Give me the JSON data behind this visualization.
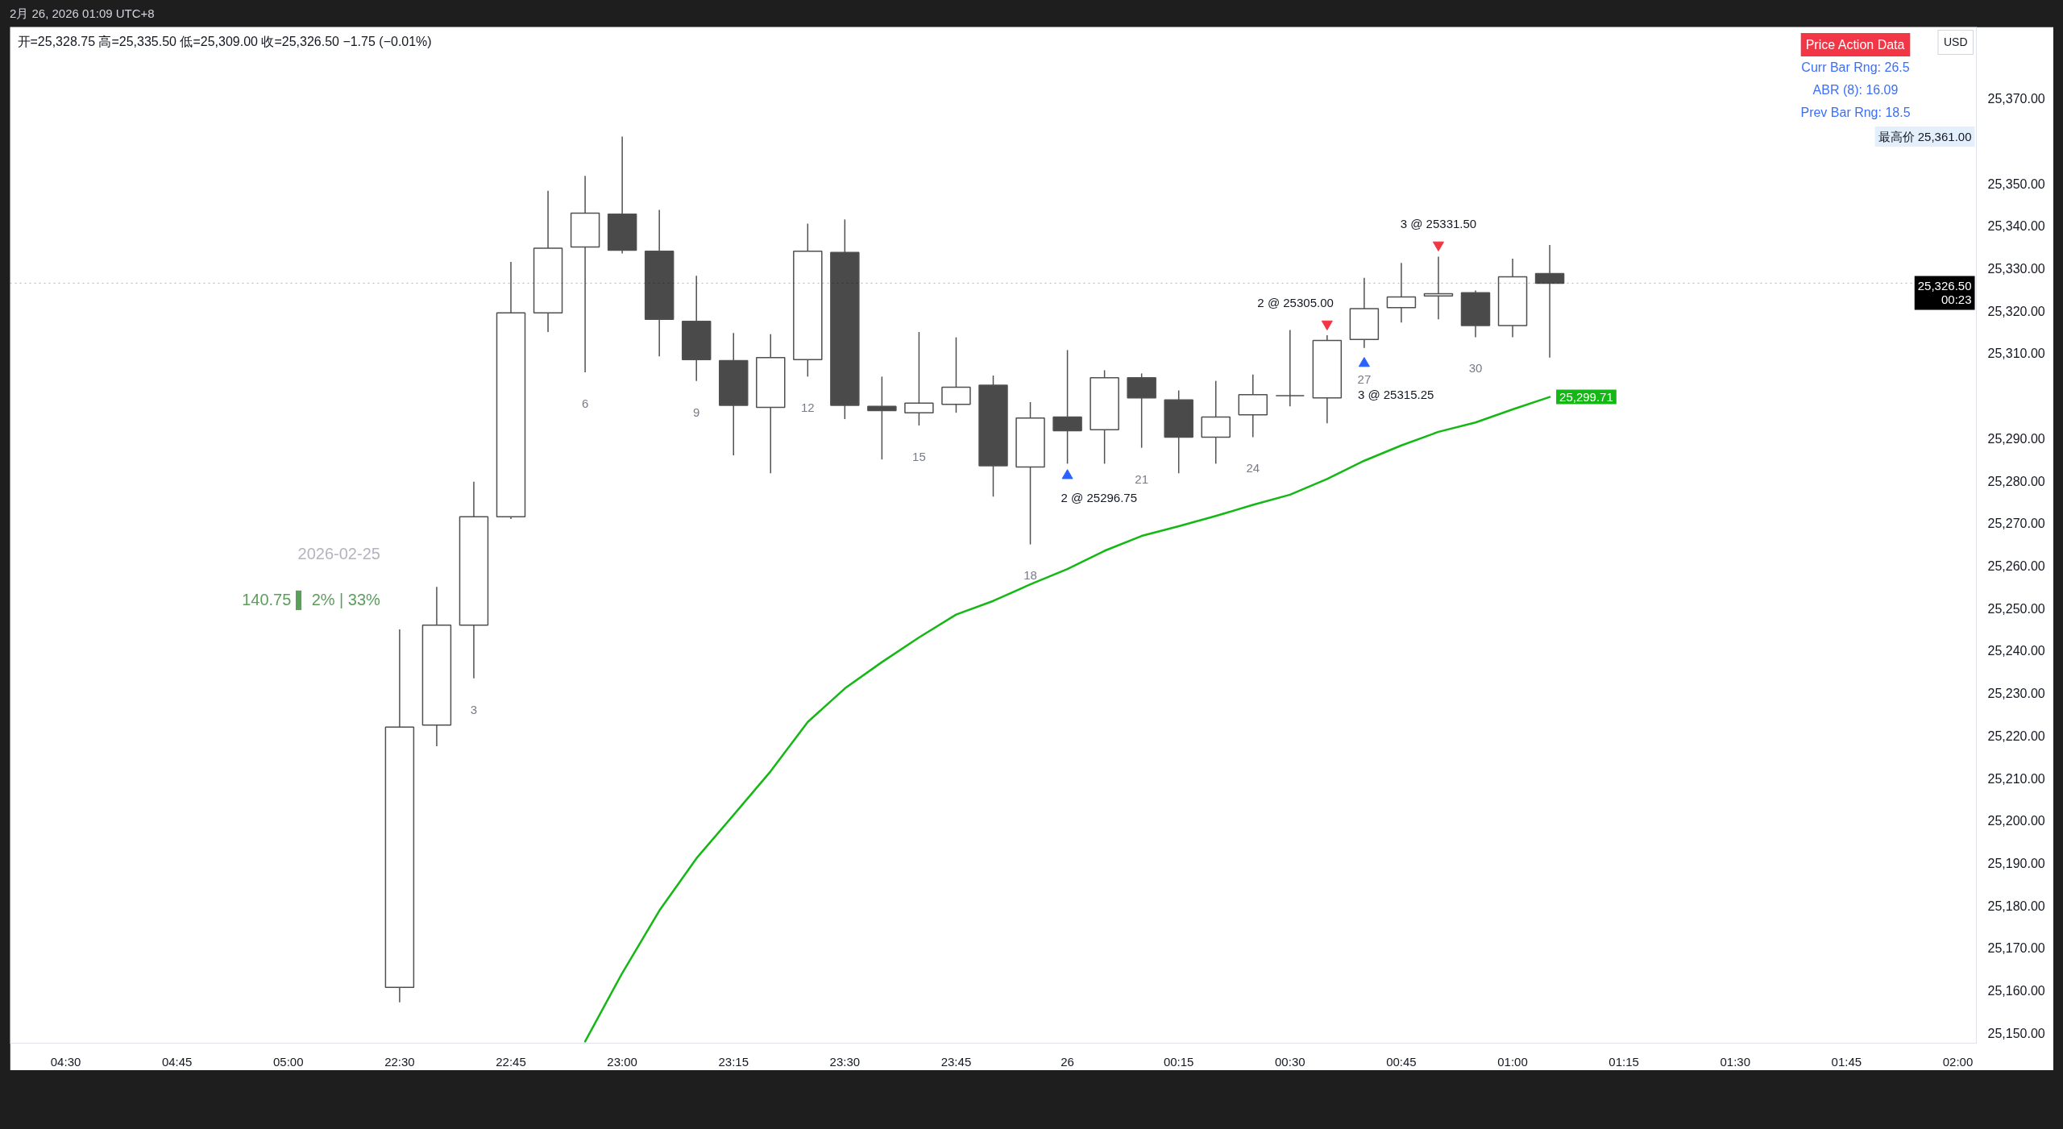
{
  "chart_data": {
    "type": "candlestick",
    "title": "开=25,328.75 高=25,335.50 低=25,309.00 收=25,326.50 −1.75 (−0.01%)",
    "subtitle": "2月 26, 2026 01:09 UTC+8",
    "ylabel": "USD",
    "categories": [
      null,
      "04:30",
      null,
      null,
      "04:45",
      null,
      null,
      "05:00",
      null,
      null,
      "22:30",
      null,
      null,
      "22:45",
      null,
      null,
      "23:00",
      null,
      null,
      "23:15",
      null,
      null,
      "23:30",
      null,
      null,
      "23:45",
      null,
      null,
      "26",
      null,
      null,
      "00:15",
      null,
      null,
      "00:30",
      null,
      null,
      "00:45",
      null,
      null,
      "01:00",
      null,
      null,
      "01:15",
      null,
      null,
      "01:30",
      null,
      null,
      "01:45",
      null,
      null,
      "02:00"
    ],
    "ohlc": [
      null,
      null,
      null,
      null,
      null,
      null,
      null,
      null,
      null,
      null,
      [
        25160.75,
        25245,
        25157.25,
        25222
      ],
      [
        25222.5,
        25255,
        25217.5,
        25246
      ],
      [
        25246,
        25279.75,
        25233.5,
        25271.5
      ],
      [
        25271.5,
        25331.5,
        25271,
        25319.5
      ],
      [
        25319.5,
        25348.25,
        25315,
        25334.75
      ],
      [
        25335,
        25351.75,
        25305.5,
        25343
      ],
      [
        25342.75,
        25361,
        25333.5,
        25334.25
      ],
      [
        25334,
        25343.75,
        25309.25,
        25318
      ],
      [
        25317.5,
        25328.25,
        25303.5,
        25308.5
      ],
      [
        25308.25,
        25314.75,
        25286,
        25297.75
      ],
      [
        25297.25,
        25314.5,
        25281.75,
        25309
      ],
      [
        25308.5,
        25340.5,
        25304.5,
        25334
      ],
      [
        25333.75,
        25341.5,
        25294.5,
        25297.75
      ],
      [
        25297.5,
        25304.5,
        25285,
        25296.5
      ],
      [
        25296,
        25315,
        25293,
        25298.25
      ],
      [
        25298,
        25313.75,
        25296,
        25302
      ],
      [
        25302.5,
        25304.75,
        25276.25,
        25283.5
      ],
      [
        25283.25,
        25298.5,
        25265,
        25294.75
      ],
      [
        25295,
        25310.75,
        25284,
        25291.75
      ],
      [
        25292,
        25306,
        25284,
        25304.25
      ],
      [
        25304.25,
        25305.25,
        25287.75,
        25299.5
      ],
      [
        25299,
        25301.25,
        25281.75,
        25290.25
      ],
      [
        25290.25,
        25303.5,
        25284,
        25295
      ],
      [
        25295.5,
        25305,
        25290.25,
        25300.25
      ],
      [
        25300,
        25315.5,
        25297.5,
        25300
      ],
      [
        25299.5,
        25314.25,
        25293.5,
        25313
      ],
      [
        25313.25,
        25327.75,
        25311.25,
        25320.5
      ],
      [
        25320.75,
        25331.25,
        25317.25,
        25323.25
      ],
      [
        25323.5,
        25332.75,
        25318,
        25324
      ],
      [
        25324.25,
        25324.75,
        25313.75,
        25316.5
      ],
      [
        25316.5,
        25332.25,
        25313.75,
        25328
      ],
      [
        25328.75,
        25335.5,
        25309,
        25326.5
      ],
      null,
      null,
      null,
      null,
      null,
      null,
      null,
      null,
      null,
      null,
      null
    ],
    "colors": [
      null,
      null,
      null,
      null,
      null,
      null,
      null,
      null,
      null,
      null,
      "#ffffff",
      "#ffffff",
      "#ffffff",
      "#ffffff",
      "#ffffff",
      "#ffffff",
      "#4a4a4a",
      "#4a4a4a",
      "#4a4a4a",
      "#4a4a4a",
      "#ffffff",
      "#ffffff",
      "#4a4a4a",
      "#4a4a4a",
      "#ffffff",
      "#ffffff",
      "#4a4a4a",
      "#ffffff",
      "#4a4a4a",
      "#ffffff",
      "#4a4a4a",
      "#4a4a4a",
      "#ffffff",
      "#ffffff",
      "#4a4a4a",
      "#ffffff",
      "#ffffff",
      "#ffffff",
      "#ffffff",
      "#4a4a4a",
      "#ffffff",
      "#4a4a4a",
      null,
      null,
      null,
      null,
      null,
      null,
      null,
      null,
      null,
      null,
      null
    ],
    "color": "#505050",
    "value_labels": [
      null,
      null,
      null,
      null,
      null,
      null,
      null,
      null,
      null,
      null,
      null,
      null,
      "3",
      null,
      null,
      "6",
      null,
      null,
      "9",
      null,
      null,
      "12",
      null,
      null,
      "15",
      null,
      null,
      "18",
      null,
      null,
      "21",
      null,
      null,
      "24",
      null,
      null,
      "27",
      null,
      null,
      "30",
      null,
      null,
      null,
      null,
      null,
      null,
      null,
      null,
      null,
      null,
      null,
      null,
      null
    ],
    "series": [
      {
        "type": "line",
        "color": "#14b814",
        "values": [
          null,
          null,
          null,
          null,
          null,
          null,
          null,
          null,
          null,
          null,
          null,
          null,
          null,
          null,
          null,
          25148,
          25164.1,
          25178.8,
          25191.1,
          25201.3,
          25211.6,
          25223.2,
          25231.1,
          25237.3,
          25243.1,
          25248.5,
          25251.7,
          25255.6,
          25259.2,
          25263.5,
          25267.0,
          25269.3,
          25271.7,
          25274.3,
          25276.7,
          25280.4,
          25284.7,
          25288.3,
          25291.5,
          25293.7,
          25296.8,
          25299.71,
          null,
          null,
          null,
          null,
          null,
          null,
          null,
          null,
          null,
          null,
          null
        ],
        "value_labels": [
          null,
          null,
          null,
          null,
          null,
          null,
          null,
          null,
          null,
          null,
          null,
          null,
          null,
          null,
          null,
          null,
          null,
          null,
          null,
          null,
          null,
          null,
          null,
          null,
          null,
          null,
          null,
          null,
          null,
          null,
          null,
          null,
          null,
          null,
          null,
          null,
          null,
          null,
          null,
          null,
          null,
          "25,299.71",
          null,
          null,
          null,
          null,
          null,
          null,
          null,
          null,
          null,
          null,
          null
        ]
      },
      {
        "type": "scatter",
        "color": "#2962ff",
        "marker": "triangle",
        "values": [
          null,
          null,
          null,
          null,
          null,
          null,
          null,
          null,
          null,
          null,
          null,
          null,
          null,
          null,
          null,
          null,
          null,
          null,
          null,
          null,
          null,
          null,
          null,
          null,
          null,
          null,
          null,
          null,
          25281.2,
          null,
          null,
          null,
          null,
          null,
          null,
          null,
          25307.6,
          null,
          null,
          null,
          null,
          null,
          null,
          null,
          null,
          null,
          null,
          null,
          null,
          null,
          null,
          null,
          null
        ],
        "value_labels": [
          null,
          null,
          null,
          null,
          null,
          null,
          null,
          null,
          null,
          null,
          null,
          null,
          null,
          null,
          null,
          null,
          null,
          null,
          null,
          null,
          null,
          null,
          null,
          null,
          null,
          null,
          null,
          null,
          "2 @ 25296.75",
          null,
          null,
          null,
          null,
          null,
          null,
          null,
          "3 @ 25315.25",
          null,
          null,
          null,
          null,
          null,
          null,
          null,
          null,
          null,
          null,
          null,
          null,
          null,
          null,
          null,
          null
        ]
      },
      {
        "type": "scatter",
        "color": "#f23645",
        "marker": "triangle",
        "values": [
          null,
          null,
          null,
          null,
          null,
          null,
          null,
          null,
          null,
          null,
          null,
          null,
          null,
          null,
          null,
          null,
          null,
          null,
          null,
          null,
          null,
          null,
          null,
          null,
          null,
          null,
          null,
          null,
          null,
          null,
          null,
          null,
          null,
          null,
          null,
          25316.9,
          null,
          null,
          25335.5,
          null,
          null,
          null,
          null,
          null,
          null,
          null,
          null,
          null,
          null,
          null,
          null,
          null,
          null
        ],
        "value_labels": [
          null,
          null,
          null,
          null,
          null,
          null,
          null,
          null,
          null,
          null,
          null,
          null,
          null,
          null,
          null,
          null,
          null,
          null,
          null,
          null,
          null,
          null,
          null,
          null,
          null,
          null,
          null,
          null,
          null,
          null,
          null,
          null,
          null,
          null,
          null,
          "2 @ 25305.00",
          null,
          null,
          "3 @ 25331.50",
          null,
          null,
          null,
          null,
          null,
          null,
          null,
          null,
          null,
          null,
          null,
          null,
          null,
          null
        ]
      }
    ],
    "ylim": [
      25147.6,
      25386.8
    ],
    "yticks": [
      {
        "value": 25150,
        "label": "25,150.00"
      },
      {
        "value": 25160,
        "label": "25,160.00"
      },
      {
        "value": 25170,
        "label": "25,170.00"
      },
      {
        "value": 25180,
        "label": "25,180.00"
      },
      {
        "value": 25190,
        "label": "25,190.00"
      },
      {
        "value": 25200,
        "label": "25,200.00"
      },
      {
        "value": 25210,
        "label": "25,210.00"
      },
      {
        "value": 25220,
        "label": "25,220.00"
      },
      {
        "value": 25230,
        "label": "25,230.00"
      },
      {
        "value": 25240,
        "label": "25,240.00"
      },
      {
        "value": 25250,
        "label": "25,250.00"
      },
      {
        "value": 25260,
        "label": "25,260.00"
      },
      {
        "value": 25270,
        "label": "25,270.00"
      },
      {
        "value": 25280,
        "label": "25,280.00"
      },
      {
        "value": 25290,
        "label": "25,290.00"
      },
      {
        "value": 25310,
        "label": "25,310.00"
      },
      {
        "value": 25320,
        "label": "25,320.00"
      },
      {
        "value": 25330,
        "label": "25,330.00"
      },
      {
        "value": 25340,
        "label": "25,340.00"
      },
      {
        "value": 25350,
        "label": "25,350.00"
      },
      {
        "value": 25370,
        "label": "25,370.00"
      }
    ],
    "ref_lines": [
      {
        "axis": "y",
        "value": 25326.5,
        "label": "25,326.50\n00:23",
        "color": "#000000",
        "line_style": "dotted"
      }
    ],
    "annotations": [
      "Price Action Data",
      "Curr Bar Rng: 26.5",
      "ABR (8): 16.09",
      "Prev Bar Rng: 18.5",
      "2026-02-25",
      "140.75 ▌ 2% | 33%",
      "最高价 25,361.00"
    ]
  }
}
